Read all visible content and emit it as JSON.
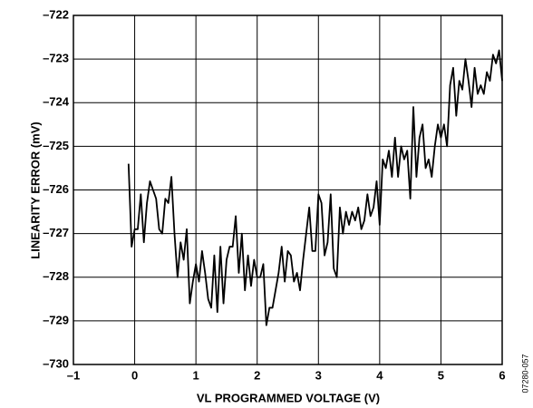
{
  "chart_data": {
    "type": "line",
    "xlabel": "VL PROGRAMMED VOLTAGE (V)",
    "ylabel": "LINEARITY ERROR (mV)",
    "note": "07280-057",
    "xlim": [
      -1,
      6
    ],
    "ylim": [
      -730,
      -722
    ],
    "xticks": [
      {
        "value": -1,
        "label": "–1"
      },
      0,
      1,
      2,
      3,
      4,
      5,
      6
    ],
    "yticks": [
      {
        "value": -730,
        "label": "–730"
      },
      {
        "value": -729,
        "label": "–729"
      },
      {
        "value": -728,
        "label": "–728"
      },
      {
        "value": -727,
        "label": "–727"
      },
      {
        "value": -726,
        "label": "–726"
      },
      {
        "value": -725,
        "label": "–725"
      },
      {
        "value": -724,
        "label": "–724"
      },
      {
        "value": -723,
        "label": "–723"
      },
      {
        "value": -722,
        "label": "–722"
      }
    ],
    "grid": true,
    "x": [
      -0.1,
      -0.05,
      0,
      0.05,
      0.1,
      0.15,
      0.2,
      0.25,
      0.3,
      0.35,
      0.4,
      0.45,
      0.5,
      0.55,
      0.6,
      0.65,
      0.7,
      0.75,
      0.8,
      0.85,
      0.9,
      0.95,
      1,
      1.05,
      1.1,
      1.15,
      1.2,
      1.25,
      1.3,
      1.35,
      1.4,
      1.45,
      1.5,
      1.55,
      1.6,
      1.65,
      1.7,
      1.75,
      1.8,
      1.85,
      1.9,
      1.95,
      2,
      2.05,
      2.1,
      2.15,
      2.2,
      2.25,
      2.3,
      2.35,
      2.4,
      2.45,
      2.5,
      2.55,
      2.6,
      2.65,
      2.7,
      2.75,
      2.8,
      2.85,
      2.9,
      2.95,
      3,
      3.05,
      3.1,
      3.15,
      3.2,
      3.25,
      3.3,
      3.35,
      3.4,
      3.45,
      3.5,
      3.55,
      3.6,
      3.65,
      3.7,
      3.75,
      3.8,
      3.85,
      3.9,
      3.95,
      4,
      4.05,
      4.1,
      4.15,
      4.2,
      4.25,
      4.3,
      4.35,
      4.4,
      4.45,
      4.5,
      4.55,
      4.6,
      4.65,
      4.7,
      4.75,
      4.8,
      4.85,
      4.9,
      4.95,
      5,
      5.05,
      5.1,
      5.15,
      5.2,
      5.25,
      5.3,
      5.35,
      5.4,
      5.45,
      5.5,
      5.55,
      5.6,
      5.65,
      5.7,
      5.75,
      5.8,
      5.85,
      5.9,
      5.95,
      6
    ],
    "series": [
      {
        "color": "#000000",
        "values": [
          -725.4,
          -727.3,
          -726.9,
          -726.9,
          -726.1,
          -727.2,
          -726.3,
          -725.8,
          -726.0,
          -726.2,
          -726.9,
          -727.0,
          -726.2,
          -726.3,
          -725.7,
          -727.0,
          -728.0,
          -727.2,
          -727.6,
          -726.9,
          -728.6,
          -728.1,
          -727.7,
          -728.1,
          -727.4,
          -727.9,
          -728.5,
          -728.7,
          -727.5,
          -728.8,
          -727.3,
          -728.6,
          -727.6,
          -727.3,
          -727.3,
          -726.6,
          -727.9,
          -727.0,
          -728.3,
          -727.5,
          -728.2,
          -727.6,
          -728.0,
          -728.0,
          -727.7,
          -729.1,
          -728.7,
          -728.7,
          -728.3,
          -727.9,
          -727.3,
          -728.1,
          -727.4,
          -727.5,
          -728.1,
          -727.9,
          -728.3,
          -727.6,
          -727.0,
          -726.4,
          -727.4,
          -727.4,
          -726.1,
          -726.3,
          -727.5,
          -727.2,
          -726.1,
          -727.8,
          -728.0,
          -726.4,
          -727.0,
          -726.5,
          -726.8,
          -726.5,
          -726.7,
          -726.4,
          -726.9,
          -726.7,
          -726.1,
          -726.6,
          -726.4,
          -725.8,
          -726.8,
          -725.3,
          -725.5,
          -725.1,
          -725.7,
          -724.8,
          -725.7,
          -725.0,
          -725.3,
          -725.1,
          -726.2,
          -724.1,
          -725.7,
          -724.8,
          -724.5,
          -725.5,
          -725.3,
          -725.7,
          -725.0,
          -724.5,
          -724.8,
          -724.5,
          -725.0,
          -723.6,
          -723.2,
          -724.3,
          -723.5,
          -723.7,
          -723.0,
          -723.5,
          -724.1,
          -723.2,
          -723.8,
          -723.6,
          -723.8,
          -723.3,
          -723.5,
          -722.9,
          -723.1,
          -722.8,
          -723.5
        ]
      }
    ]
  }
}
